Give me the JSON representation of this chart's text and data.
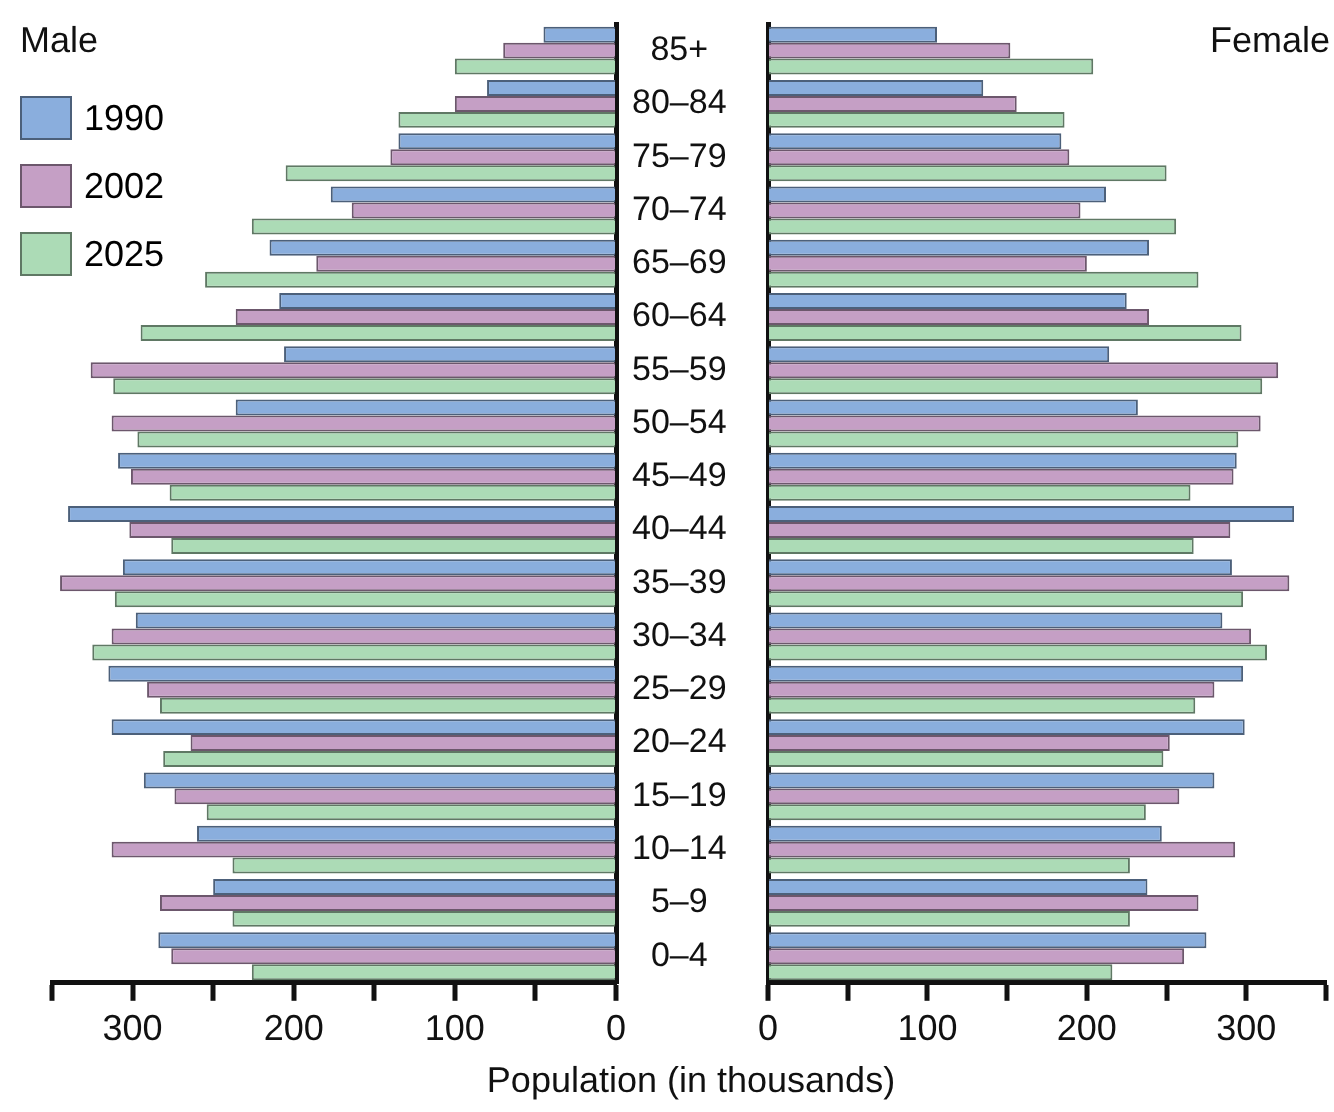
{
  "chart_data": [
    {
      "type": "bar",
      "orientation": "horizontal",
      "title": "Male",
      "xlabel": "Population (in thousands)",
      "categories": [
        "85+",
        "80–84",
        "75–79",
        "70–74",
        "65–69",
        "60–64",
        "55–59",
        "50–54",
        "45–49",
        "40–44",
        "35–39",
        "30–34",
        "25–29",
        "20–24",
        "15–19",
        "10–14",
        "5–9",
        "0–4"
      ],
      "series": [
        {
          "name": "1990",
          "color": "#8aaedd",
          "values": [
            45,
            80,
            135,
            177,
            215,
            209,
            206,
            236,
            309,
            340,
            306,
            298,
            315,
            313,
            293,
            260,
            250,
            284
          ]
        },
        {
          "name": "2002",
          "color": "#c59fc5",
          "values": [
            70,
            100,
            140,
            164,
            186,
            236,
            326,
            313,
            301,
            302,
            345,
            313,
            291,
            264,
            274,
            313,
            283,
            276
          ]
        },
        {
          "name": "2025",
          "color": "#acdbb6",
          "values": [
            100,
            135,
            205,
            226,
            255,
            295,
            312,
            297,
            277,
            276,
            311,
            325,
            283,
            281,
            254,
            238,
            238,
            226
          ]
        }
      ],
      "xlim": [
        350,
        0
      ],
      "xticks": [
        {
          "value": 350,
          "label": null
        },
        300,
        {
          "value": 250,
          "label": null
        },
        200,
        {
          "value": 150,
          "label": null
        },
        100,
        {
          "value": 50,
          "label": null
        },
        0
      ],
      "legend": "top left",
      "grid": false
    },
    {
      "type": "bar",
      "orientation": "horizontal",
      "title": "Female",
      "categories": [
        null,
        null,
        null,
        null,
        null,
        null,
        null,
        null,
        null,
        null,
        null,
        null,
        null,
        null,
        null,
        null,
        null,
        null
      ],
      "series": [
        {
          "color": "#8aaedd",
          "values": [
            106,
            135,
            184,
            212,
            239,
            225,
            214,
            232,
            294,
            330,
            291,
            285,
            298,
            299,
            280,
            247,
            238,
            275
          ]
        },
        {
          "color": "#c59fc5",
          "values": [
            152,
            156,
            189,
            196,
            200,
            239,
            320,
            309,
            292,
            290,
            327,
            303,
            280,
            252,
            258,
            293,
            270,
            261
          ]
        },
        {
          "color": "#acdbb6",
          "values": [
            204,
            186,
            250,
            256,
            270,
            297,
            310,
            295,
            265,
            267,
            298,
            313,
            268,
            248,
            237,
            227,
            227,
            216
          ]
        }
      ],
      "xlim": [
        0,
        350
      ],
      "xticks": [
        0,
        {
          "value": 50,
          "label": null
        },
        100,
        {
          "value": 150,
          "label": null
        },
        200,
        {
          "value": 250,
          "label": null
        },
        300,
        {
          "value": 350,
          "label": null
        }
      ],
      "grid": false,
      "tick_labels": "x"
    }
  ]
}
